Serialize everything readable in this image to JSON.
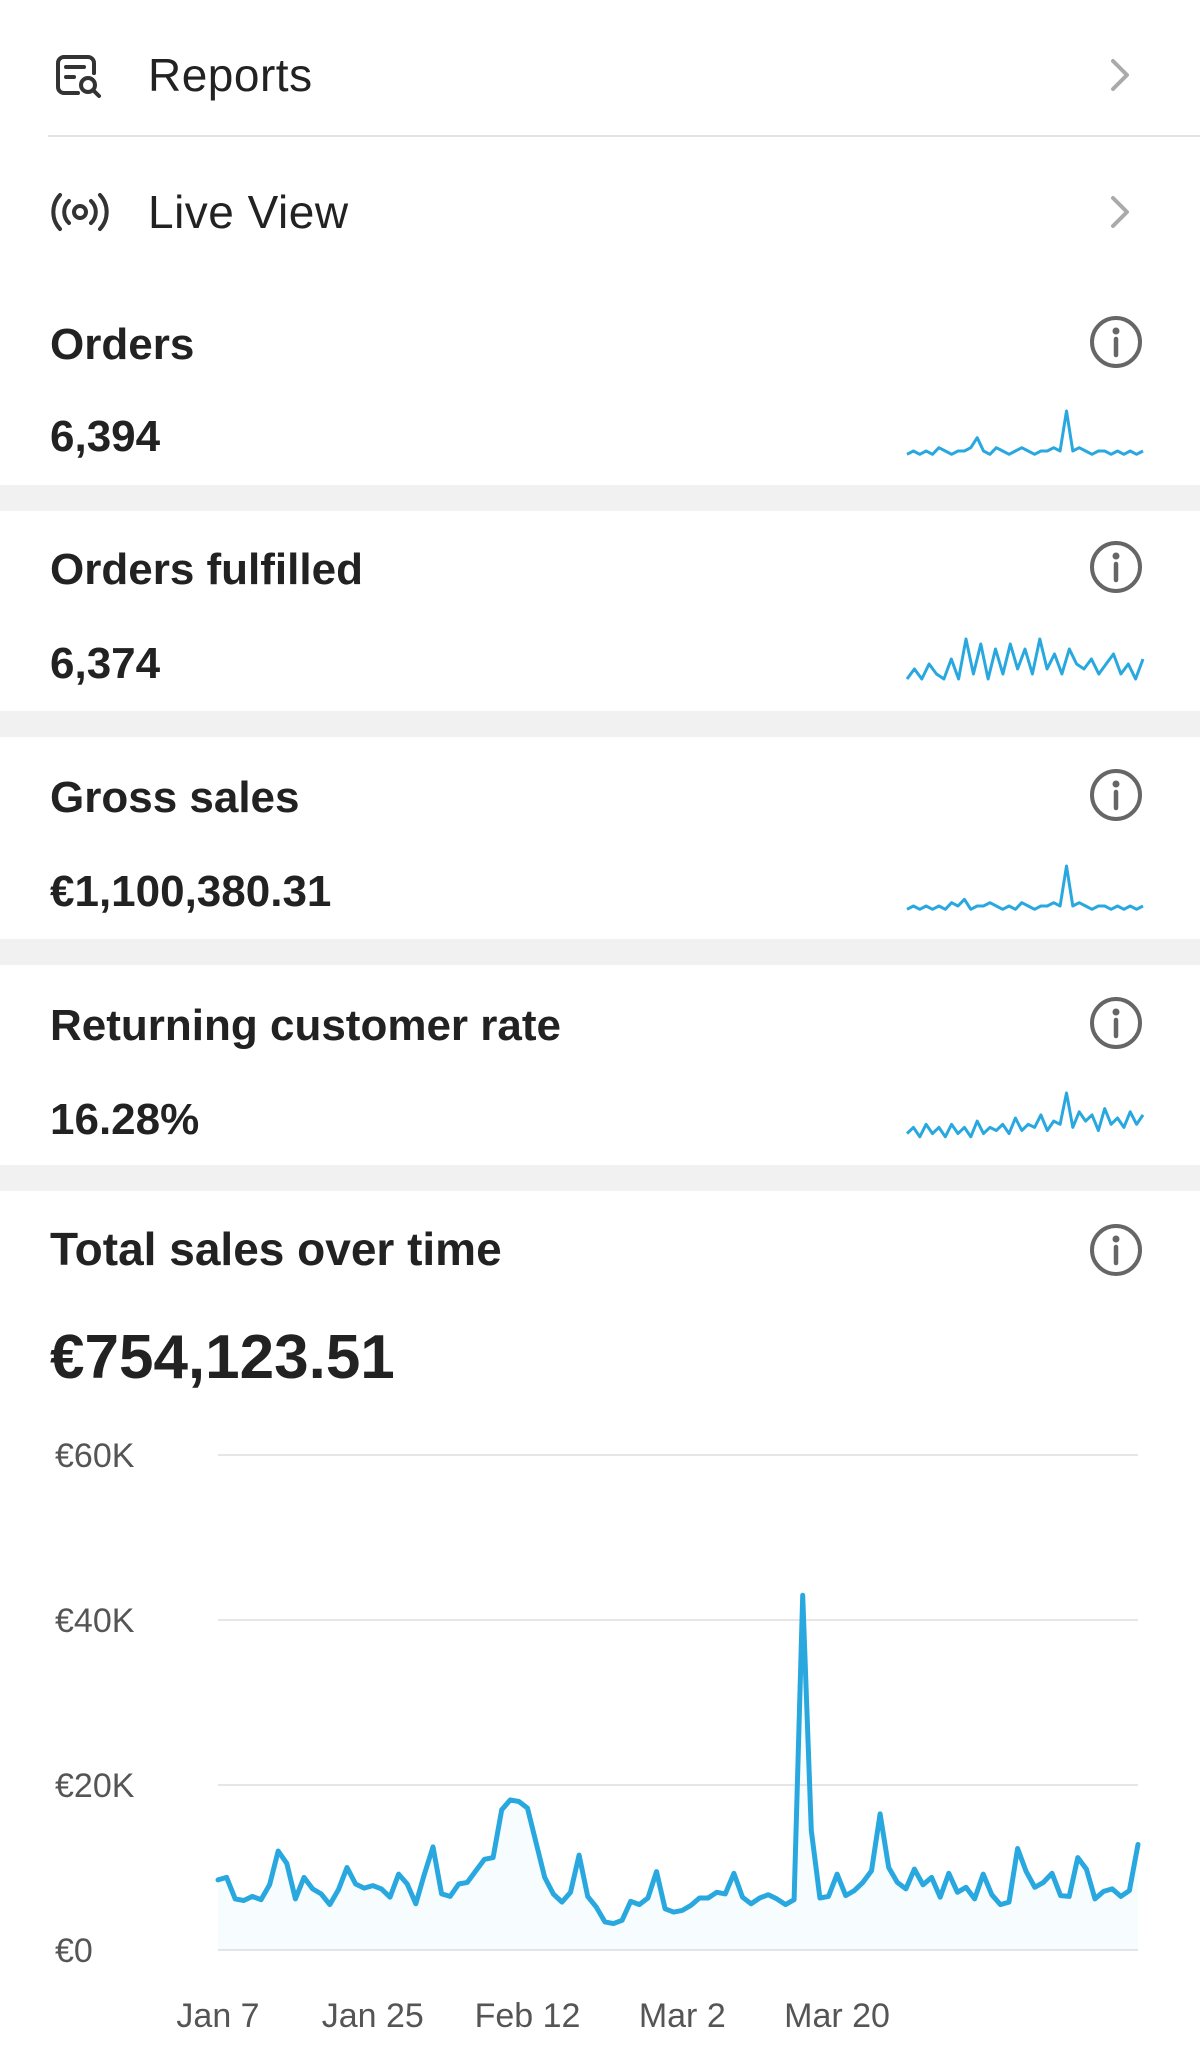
{
  "nav": {
    "reports": {
      "label": "Reports",
      "icon": "reports-icon"
    },
    "live_view": {
      "label": "Live View",
      "icon": "live-view-icon"
    }
  },
  "metrics": [
    {
      "title": "Orders",
      "value": "6,394",
      "icon": "info-icon"
    },
    {
      "title": "Orders fulfilled",
      "value": "6,374",
      "icon": "info-icon"
    },
    {
      "title": "Gross sales",
      "value": "€1,100,380.31",
      "icon": "info-icon"
    },
    {
      "title": "Returning customer rate",
      "value": "16.28%",
      "icon": "info-icon"
    }
  ],
  "sales_card": {
    "title": "Total sales over time",
    "value": "€754,123.51",
    "icon": "info-icon"
  },
  "colors": {
    "accent": "#29a8e0",
    "gap": "#f1f1f1",
    "text": "#222222",
    "muted": "#555555"
  },
  "sparklines": {
    "orders": [
      2,
      3,
      2,
      3,
      2,
      4,
      3,
      2,
      3,
      3,
      4,
      7,
      3,
      2,
      4,
      3,
      2,
      3,
      4,
      3,
      2,
      3,
      3,
      4,
      3,
      15,
      3,
      4,
      3,
      2,
      3,
      3,
      2,
      3,
      2,
      3,
      2,
      3
    ],
    "fulfilled": [
      2,
      4,
      2,
      5,
      3,
      2,
      6,
      2,
      10,
      3,
      9,
      2,
      8,
      3,
      9,
      4,
      8,
      3,
      10,
      4,
      7,
      3,
      8,
      5,
      4,
      6,
      3,
      5,
      7,
      3,
      5,
      2,
      6
    ],
    "gross": [
      2,
      3,
      2,
      3,
      2,
      3,
      2,
      4,
      3,
      5,
      2,
      3,
      3,
      4,
      3,
      2,
      3,
      2,
      4,
      3,
      2,
      3,
      3,
      4,
      3,
      15,
      3,
      4,
      3,
      2,
      3,
      3,
      2,
      3,
      2,
      3,
      2,
      3
    ],
    "returning": [
      3,
      5,
      2,
      6,
      3,
      5,
      2,
      6,
      3,
      5,
      2,
      7,
      3,
      5,
      4,
      6,
      3,
      8,
      4,
      6,
      5,
      9,
      4,
      7,
      6,
      16,
      5,
      10,
      7,
      9,
      4,
      11,
      6,
      8,
      5,
      10,
      6,
      9
    ]
  },
  "chart_data": {
    "type": "line",
    "xlabel": "",
    "ylabel": "",
    "ylim": [
      0,
      60000
    ],
    "y_ticks": [
      "€0",
      "€20K",
      "€40K",
      "€60K"
    ],
    "y_tick_values": [
      0,
      20000,
      40000,
      60000
    ],
    "x_ticks": [
      "Jan 7",
      "Jan 25",
      "Feb 12",
      "Mar 2",
      "Mar 20"
    ],
    "x_tick_day_index": [
      0,
      18,
      36,
      54,
      72
    ],
    "series": [
      {
        "values": [
          8500,
          8800,
          6200,
          6000,
          6500,
          6100,
          7900,
          12000,
          10500,
          6200,
          8800,
          7400,
          6800,
          5500,
          7300,
          10000,
          8000,
          7500,
          7800,
          7400,
          6400,
          9200,
          8000,
          5600,
          9200,
          12500,
          6800,
          6500,
          8000,
          8200,
          9600,
          11000,
          11200,
          17000,
          18200,
          18000,
          17200,
          13000,
          8800,
          6800,
          5800,
          7000,
          11500,
          6500,
          5200,
          3400,
          3200,
          3600,
          5900,
          5500,
          6300,
          9500,
          5000,
          4600,
          4800,
          5400,
          6300,
          6300,
          7000,
          6800,
          9300,
          6400,
          5600,
          6300,
          6700,
          6200,
          5500,
          6100,
          43000,
          14500,
          6300,
          6500,
          9200,
          6600,
          7200,
          8200,
          9600,
          16500,
          10000,
          8200,
          7400,
          9800,
          7900,
          8800,
          6400,
          9300,
          7000,
          7600,
          6200,
          9200,
          6700,
          5500,
          5800,
          12300,
          9500,
          7600,
          8200,
          9300,
          6600,
          6500,
          11200,
          9800,
          6200,
          7100,
          7400,
          6500,
          7200,
          12800
        ]
      }
    ]
  }
}
